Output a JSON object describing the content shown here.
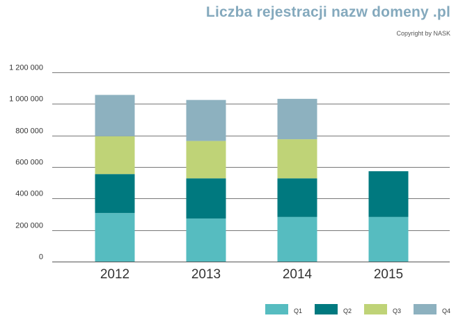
{
  "header": {
    "title": "Liczba rejestracji nazw domeny .pl",
    "copyright": "Copyright by NASK"
  },
  "chart_data": {
    "type": "bar",
    "stacked": true,
    "title": "Liczba rejestracji nazw domeny .pl",
    "xlabel": "",
    "ylabel": "",
    "categories": [
      "2012",
      "2013",
      "2014",
      "2015"
    ],
    "ylim": [
      0,
      1200000
    ],
    "yticks": [
      0,
      200000,
      400000,
      600000,
      800000,
      1000000,
      1200000
    ],
    "ytick_labels": [
      "0",
      "200 000",
      "400 000",
      "600 000",
      "800 000",
      "1 000 000",
      "1 200 000"
    ],
    "grid": true,
    "legend_position": "bottom-right",
    "series": [
      {
        "name": "Q1",
        "color": "#56bcc0",
        "values": [
          308000,
          273000,
          283000,
          283000
        ]
      },
      {
        "name": "Q2",
        "color": "#00797f",
        "values": [
          247000,
          255000,
          245000,
          290000
        ]
      },
      {
        "name": "Q3",
        "color": "#bfd377",
        "values": [
          240000,
          237000,
          248000,
          0
        ]
      },
      {
        "name": "Q4",
        "color": "#8db1bf",
        "values": [
          262000,
          260000,
          256000,
          0
        ]
      }
    ]
  }
}
